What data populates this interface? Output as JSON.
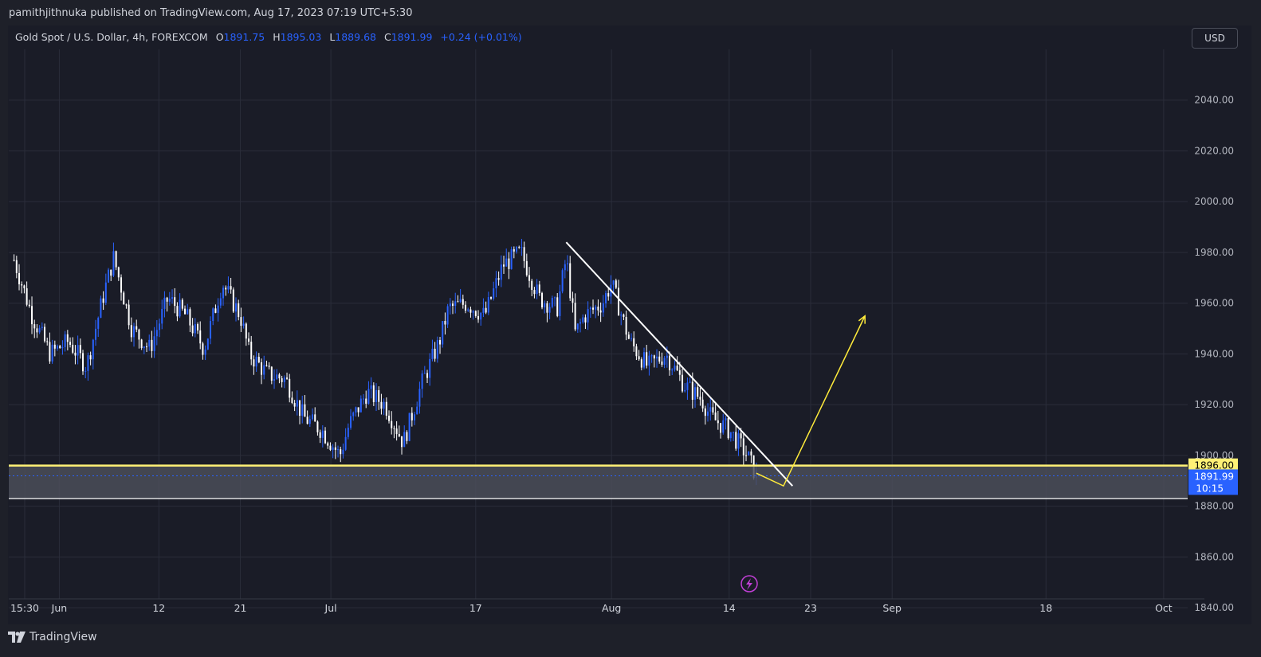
{
  "header": {
    "published_text": "pamithjithnuka published on TradingView.com, Aug 17, 2023 07:19 UTC+5:30"
  },
  "legend": {
    "symbol": "Gold Spot / U.S. Dollar, 4h, FOREXCOM",
    "o_label": "O",
    "o_value": "1891.75",
    "h_label": "H",
    "h_value": "1895.03",
    "l_label": "L",
    "l_value": "1889.68",
    "c_label": "C",
    "c_value": "1891.99",
    "change": "+0.24 (+0.01%)"
  },
  "currency_button": "USD",
  "footer": {
    "brand": "TradingView"
  },
  "colors": {
    "background": "#1a1c27",
    "up_candle": "#2962ff",
    "down_candle": "#ffffff",
    "support_line": "#fff176",
    "projection": "#ffeb3b",
    "price_label": "#2962ff",
    "lightning": "#c13fd6"
  },
  "chart_data": {
    "type": "candlestick",
    "symbol": "Gold Spot / U.S. Dollar",
    "interval": "4h",
    "ylim": [
      1830,
      2060
    ],
    "y_ticks": [
      "2040.00",
      "2020.00",
      "2000.00",
      "1980.00",
      "1960.00",
      "1940.00",
      "1920.00",
      "1900.00",
      "1880.00",
      "1860.00",
      "1840.00"
    ],
    "x_ticks": [
      "15:30",
      "Jun",
      "12",
      "21",
      "Jul",
      "17",
      "Aug",
      "14",
      "23",
      "Sep",
      "18",
      "Oct"
    ],
    "current_price": "1891.99",
    "countdown": "10:15",
    "support_level": "1896.00",
    "zone": {
      "top": 1896,
      "bottom": 1883
    },
    "trendline": {
      "from": {
        "date": "2023-07-27",
        "price": 1984
      },
      "to": {
        "date": "2023-08-21",
        "price": 1888
      }
    },
    "projection": [
      {
        "date": "2023-08-17",
        "price": 1893
      },
      {
        "date": "2023-08-20",
        "price": 1888
      },
      {
        "date": "2023-08-29",
        "price": 1955
      }
    ],
    "price_path": [
      {
        "date": "2023-05-27",
        "price": 1977
      },
      {
        "date": "2023-05-29",
        "price": 1955
      },
      {
        "date": "2023-05-31",
        "price": 1940
      },
      {
        "date": "2023-06-02",
        "price": 1945
      },
      {
        "date": "2023-06-04",
        "price": 1935
      },
      {
        "date": "2023-06-06",
        "price": 1965
      },
      {
        "date": "2023-06-07",
        "price": 1978
      },
      {
        "date": "2023-06-09",
        "price": 1950
      },
      {
        "date": "2023-06-11",
        "price": 1942
      },
      {
        "date": "2023-06-13",
        "price": 1962
      },
      {
        "date": "2023-06-15",
        "price": 1955
      },
      {
        "date": "2023-06-17",
        "price": 1942
      },
      {
        "date": "2023-06-19",
        "price": 1968
      },
      {
        "date": "2023-06-21",
        "price": 1955
      },
      {
        "date": "2023-06-22",
        "price": 1940
      },
      {
        "date": "2023-06-24",
        "price": 1932
      },
      {
        "date": "2023-06-26",
        "price": 1930
      },
      {
        "date": "2023-06-28",
        "price": 1915
      },
      {
        "date": "2023-06-30",
        "price": 1910
      },
      {
        "date": "2023-07-02",
        "price": 1900
      },
      {
        "date": "2023-07-03",
        "price": 1912
      },
      {
        "date": "2023-07-05",
        "price": 1925
      },
      {
        "date": "2023-07-07",
        "price": 1920
      },
      {
        "date": "2023-07-09",
        "price": 1905
      },
      {
        "date": "2023-07-11",
        "price": 1928
      },
      {
        "date": "2023-07-13",
        "price": 1945
      },
      {
        "date": "2023-07-14",
        "price": 1958
      },
      {
        "date": "2023-07-16",
        "price": 1960
      },
      {
        "date": "2023-07-18",
        "price": 1955
      },
      {
        "date": "2023-07-20",
        "price": 1975
      },
      {
        "date": "2023-07-22",
        "price": 1980
      },
      {
        "date": "2023-07-24",
        "price": 1962
      },
      {
        "date": "2023-07-26",
        "price": 1958
      },
      {
        "date": "2023-07-27",
        "price": 1978
      },
      {
        "date": "2023-07-28",
        "price": 1948
      },
      {
        "date": "2023-07-29",
        "price": 1955
      },
      {
        "date": "2023-07-31",
        "price": 1960
      },
      {
        "date": "2023-08-01",
        "price": 1968
      },
      {
        "date": "2023-08-03",
        "price": 1945
      },
      {
        "date": "2023-08-05",
        "price": 1935
      },
      {
        "date": "2023-08-07",
        "price": 1940
      },
      {
        "date": "2023-08-09",
        "price": 1928
      },
      {
        "date": "2023-08-11",
        "price": 1922
      },
      {
        "date": "2023-08-12",
        "price": 1915
      },
      {
        "date": "2023-08-14",
        "price": 1910
      },
      {
        "date": "2023-08-16",
        "price": 1900
      },
      {
        "date": "2023-08-17",
        "price": 1892
      }
    ]
  }
}
